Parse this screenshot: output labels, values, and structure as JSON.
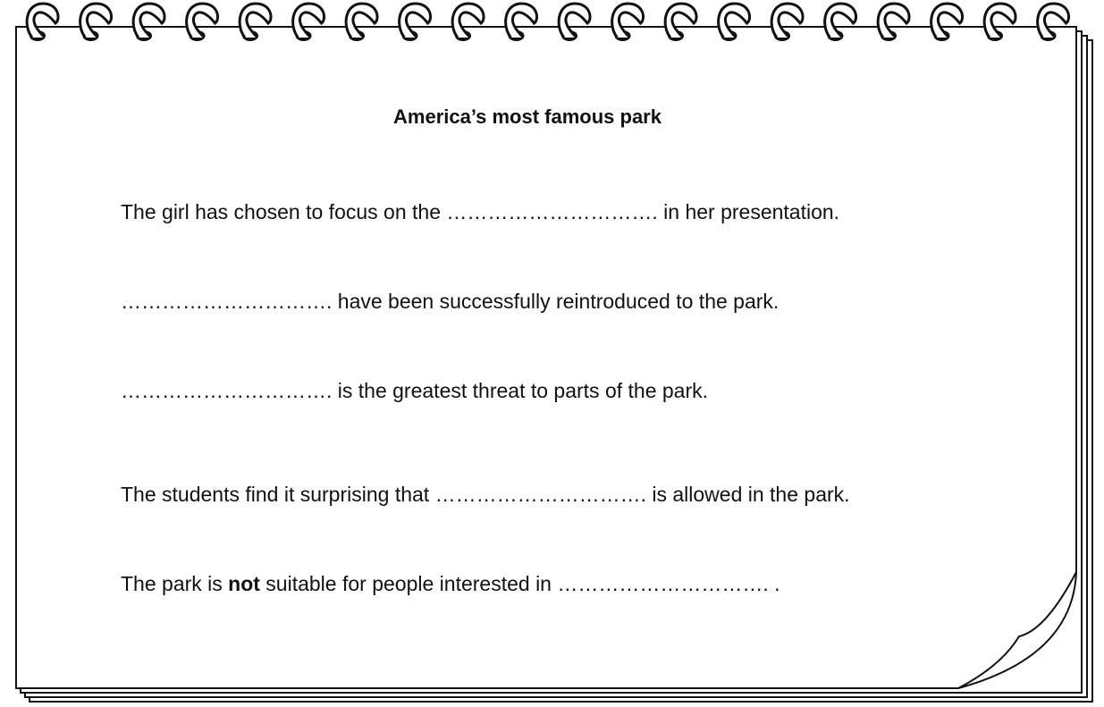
{
  "title": "America’s most famous park",
  "sentences": [
    [
      "The girl has chosen to focus on the ",
      "…………………………. ",
      "in her presentation."
    ],
    [
      "…………………………. ",
      "have been successfully reintroduced to the park."
    ],
    [
      "…………………………. ",
      "is the greatest threat to parts of the park."
    ],
    [
      "The students find it surprising that ",
      "…………………………. ",
      "is allowed in the park."
    ],
    [
      "The park is ",
      "not",
      " suitable for people interested in ",
      "…………………………. ",
      "."
    ]
  ]
}
